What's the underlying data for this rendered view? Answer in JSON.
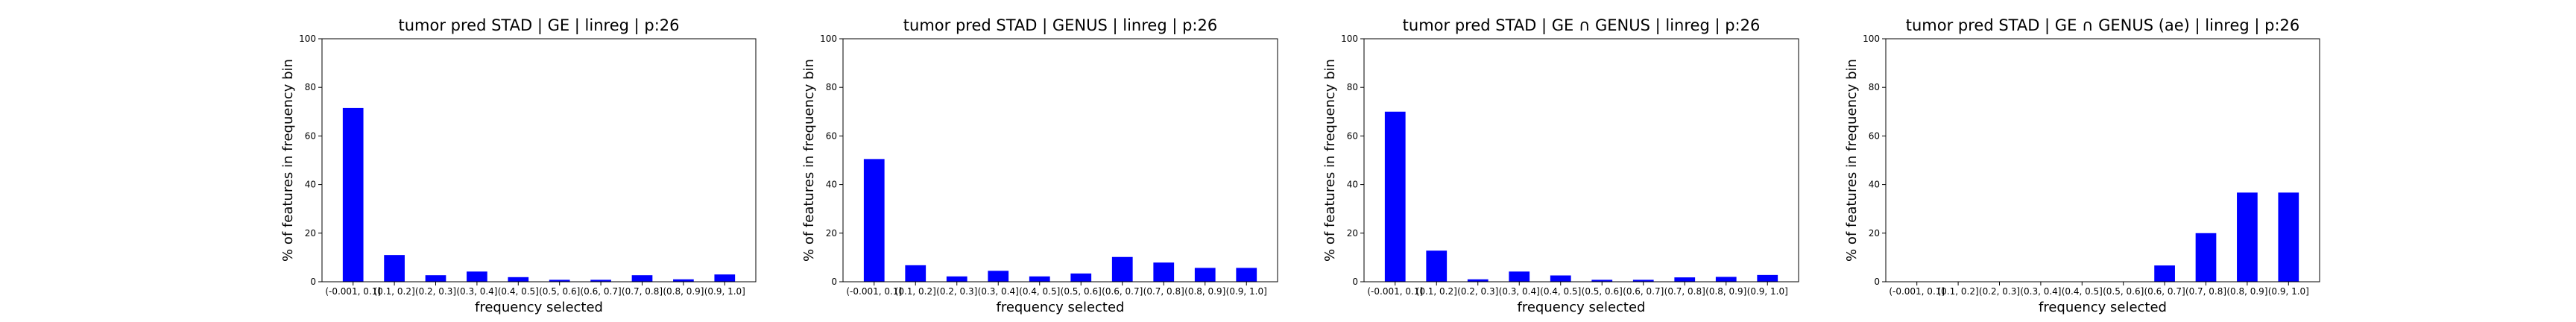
{
  "chart_data": [
    {
      "type": "bar",
      "title": "tumor pred STAD | GE | linreg | p:26",
      "xlabel": "frequency selected",
      "ylabel": "% of features in frequency bin",
      "ylim": [
        0,
        100
      ],
      "yticks": [
        0,
        20,
        40,
        60,
        80,
        100
      ],
      "bar_color": "#0000ff",
      "categories": [
        "(-0.001, 0.1]",
        "(0.1, 0.2]",
        "(0.2, 0.3]",
        "(0.3, 0.4]",
        "(0.4, 0.5]",
        "(0.5, 0.6]",
        "(0.6, 0.7]",
        "(0.7, 0.8]",
        "(0.8, 0.9]",
        "(0.9, 1.0]"
      ],
      "values": [
        71.5,
        11.0,
        2.7,
        4.2,
        1.9,
        0.8,
        0.8,
        2.7,
        1.0,
        3.0
      ]
    },
    {
      "type": "bar",
      "title": "tumor pred STAD | GENUS | linreg | p:26",
      "xlabel": "frequency selected",
      "ylabel": "% of features in frequency bin",
      "ylim": [
        0,
        100
      ],
      "yticks": [
        0,
        20,
        40,
        60,
        80,
        100
      ],
      "bar_color": "#0000ff",
      "categories": [
        "(-0.001, 0.1]",
        "(0.1, 0.2]",
        "(0.2, 0.3]",
        "(0.3, 0.4]",
        "(0.4, 0.5]",
        "(0.5, 0.6]",
        "(0.6, 0.7]",
        "(0.7, 0.8]",
        "(0.8, 0.9]",
        "(0.9, 1.0]"
      ],
      "values": [
        50.5,
        6.8,
        2.2,
        4.5,
        2.2,
        3.4,
        10.2,
        7.9,
        5.7,
        5.7
      ]
    },
    {
      "type": "bar",
      "title": "tumor pred STAD | GE ∩ GENUS | linreg | p:26",
      "xlabel": "frequency selected",
      "ylabel": "% of features in frequency bin",
      "ylim": [
        0,
        100
      ],
      "yticks": [
        0,
        20,
        40,
        60,
        80,
        100
      ],
      "bar_color": "#0000ff",
      "categories": [
        "(-0.001, 0.1]",
        "(0.1, 0.2]",
        "(0.2, 0.3]",
        "(0.3, 0.4]",
        "(0.4, 0.5]",
        "(0.5, 0.6]",
        "(0.6, 0.7]",
        "(0.7, 0.8]",
        "(0.8, 0.9]",
        "(0.9, 1.0]"
      ],
      "values": [
        70.0,
        12.8,
        1.0,
        4.2,
        2.6,
        0.8,
        0.8,
        1.8,
        2.0,
        2.8
      ]
    },
    {
      "type": "bar",
      "title": "tumor pred STAD | GE ∩ GENUS (ae) | linreg | p:26",
      "xlabel": "frequency selected",
      "ylabel": "% of features in frequency bin",
      "ylim": [
        0,
        100
      ],
      "yticks": [
        0,
        20,
        40,
        60,
        80,
        100
      ],
      "bar_color": "#0000ff",
      "categories": [
        "(-0.001, 0.1]",
        "(0.1, 0.2]",
        "(0.2, 0.3]",
        "(0.3, 0.4]",
        "(0.4, 0.5]",
        "(0.5, 0.6]",
        "(0.6, 0.7]",
        "(0.7, 0.8]",
        "(0.8, 0.9]",
        "(0.9, 1.0]"
      ],
      "values": [
        0,
        0,
        0,
        0,
        0,
        0,
        6.7,
        20.0,
        36.7,
        36.7
      ]
    }
  ]
}
